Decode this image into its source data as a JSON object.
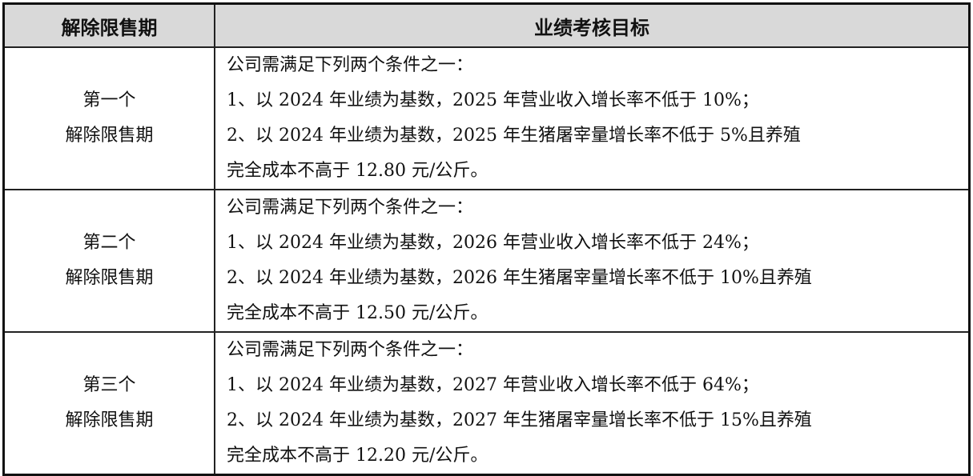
{
  "table": {
    "headers": [
      "解除限售期",
      "业绩考核目标"
    ],
    "rows": [
      {
        "period": [
          "第一个",
          "解除限售期"
        ],
        "lines": [
          "公司需满足下列两个条件之一：",
          "1、以 2024 年业绩为基数，2025 年营业收入增长率不低于 10%；",
          "2、以 2024 年业绩为基数，2025 年生猪屠宰量增长率不低于 5%且养殖",
          "完全成本不高于 12.80 元/公斤。"
        ]
      },
      {
        "period": [
          "第二个",
          "解除限售期"
        ],
        "lines": [
          "公司需满足下列两个条件之一：",
          "1、以 2024 年业绩为基数，2026 年营业收入增长率不低于 24%；",
          "2、以 2024 年业绩为基数，2026 年生猪屠宰量增长率不低于 10%且养殖",
          "完全成本不高于 12.50 元/公斤。"
        ]
      },
      {
        "period": [
          "第三个",
          "解除限售期"
        ],
        "lines": [
          "公司需满足下列两个条件之一：",
          "1、以 2024 年业绩为基数，2027 年营业收入增长率不低于 64%；",
          "2、以 2024 年业绩为基数，2027 年生猪屠宰量增长率不低于 15%且养殖",
          "完全成本不高于 12.20 元/公斤。"
        ]
      }
    ]
  }
}
